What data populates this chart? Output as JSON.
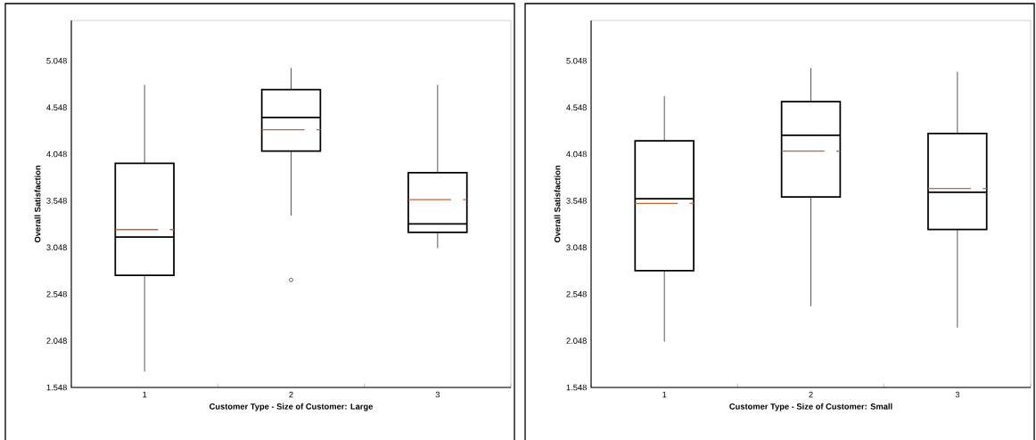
{
  "chart_data": [
    {
      "type": "box",
      "categories": [
        "1",
        "2",
        "3"
      ],
      "xlabel": "Customer Type - Size of Customer: Large",
      "ylabel": "Overall Satisfaction",
      "ylim": [
        1.548,
        5.48
      ],
      "yticks": [
        1.548,
        2.048,
        2.548,
        3.048,
        3.548,
        4.048,
        4.548,
        5.048
      ],
      "series": [
        {
          "color": "#000000",
          "boxes": [
            {
              "low": 1.72,
              "q1": 2.75,
              "median": 3.16,
              "q3": 3.95,
              "high": 4.79,
              "mean": 3.24
            },
            {
              "low": 3.39,
              "q1": 4.08,
              "median": 4.44,
              "q3": 4.74,
              "high": 4.97,
              "mean": 4.31,
              "outliers": [
                2.7
              ]
            },
            {
              "low": 3.04,
              "q1": 3.21,
              "median": 3.3,
              "q3": 3.85,
              "high": 4.79,
              "mean": 3.56
            }
          ]
        }
      ]
    },
    {
      "type": "box",
      "categories": [
        "1",
        "2",
        "3"
      ],
      "xlabel": "Customer Type - Size of Customer: Small",
      "ylabel": "Overall Satisfaction",
      "ylim": [
        1.548,
        5.48
      ],
      "yticks": [
        1.548,
        2.048,
        2.548,
        3.048,
        3.548,
        4.048,
        4.548,
        5.048
      ],
      "series": [
        {
          "color": "#000000",
          "boxes": [
            {
              "low": 2.04,
              "q1": 2.8,
              "median": 3.57,
              "q3": 4.19,
              "high": 4.67,
              "mean": 3.52
            },
            {
              "low": 2.42,
              "q1": 3.59,
              "median": 4.25,
              "q3": 4.61,
              "high": 4.97,
              "mean": 4.08
            },
            {
              "low": 2.19,
              "q1": 3.24,
              "median": 3.64,
              "q3": 4.27,
              "high": 4.93,
              "mean": 3.68
            }
          ]
        }
      ]
    }
  ]
}
